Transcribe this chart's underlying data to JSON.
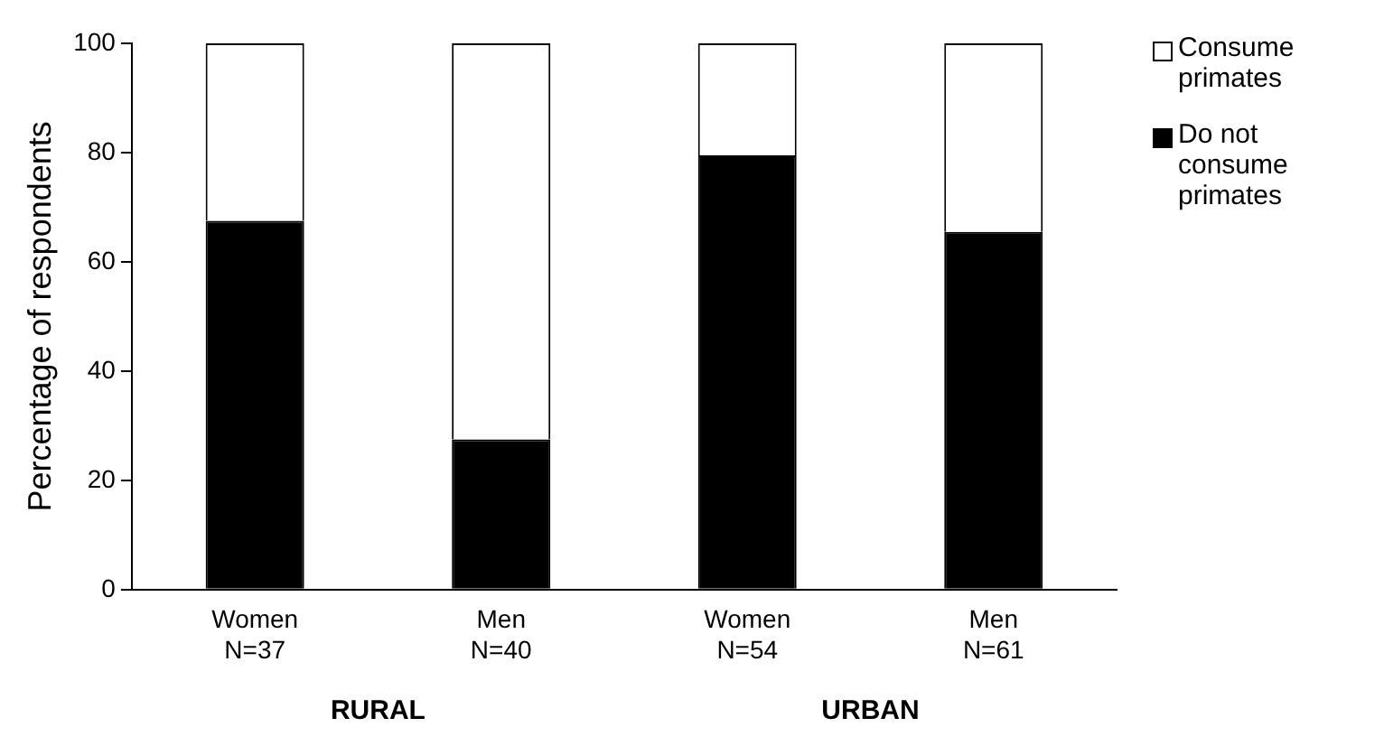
{
  "chart_data": {
    "type": "bar",
    "stacked": true,
    "ylabel": "Percentage of respondents",
    "categories": [
      "Women\nN=37",
      "Men\nN=40",
      "Women\nN=54",
      "Men\nN=61"
    ],
    "series": [
      {
        "name": "Do not consume primates",
        "color": "#000000",
        "values": [
          67.5,
          27.5,
          79.5,
          65.5
        ]
      },
      {
        "name": "Consume primates",
        "color": "#ffffff",
        "values": [
          32.5,
          72.5,
          20.5,
          34.5
        ]
      }
    ],
    "ylim": [
      0,
      100
    ],
    "yticks": [
      0,
      20,
      40,
      60,
      80,
      100
    ],
    "grid": false,
    "legend": "right",
    "annotations": [
      "RURAL",
      "URBAN"
    ]
  }
}
